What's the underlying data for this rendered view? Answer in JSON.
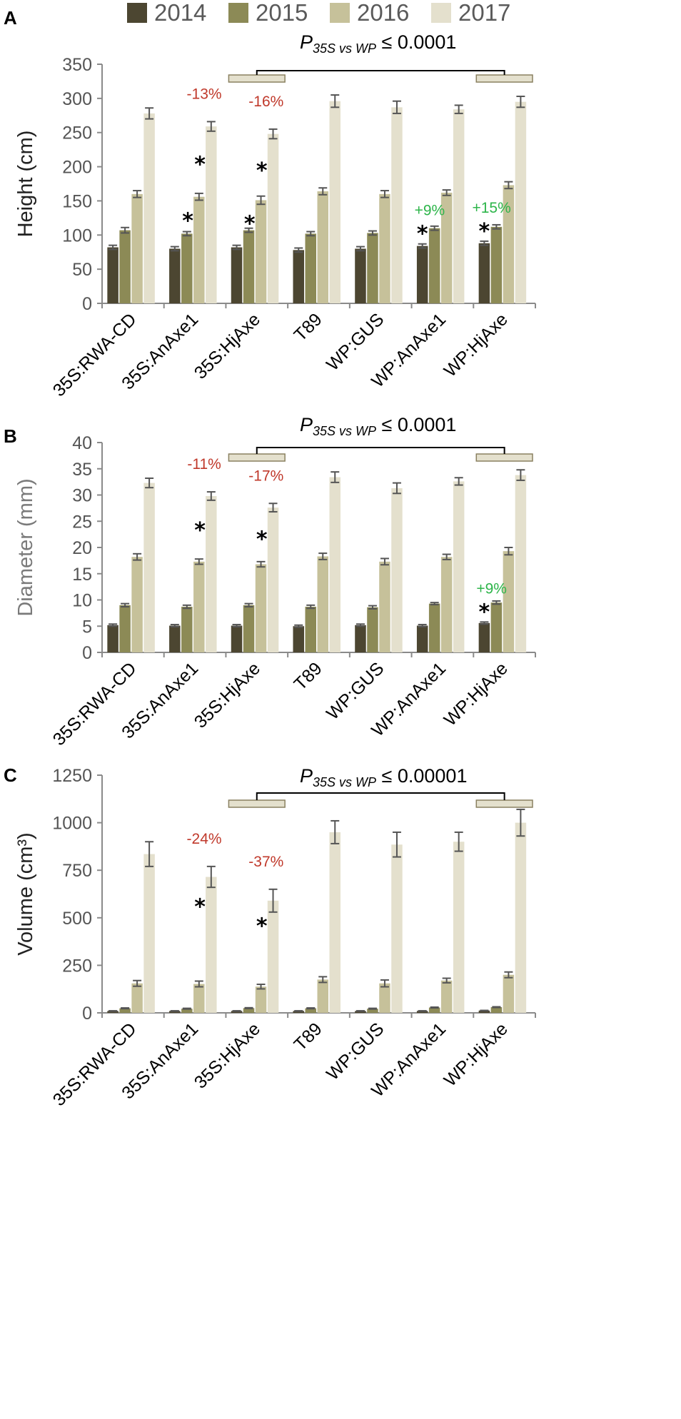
{
  "legend": {
    "entries": [
      {
        "label": "2014",
        "color": "#4c4631"
      },
      {
        "label": "2015",
        "color": "#8c8a56"
      },
      {
        "label": "2016",
        "color": "#c6c19a"
      },
      {
        "label": "2017",
        "color": "#e4e0cd"
      }
    ]
  },
  "chart_data": [
    {
      "panel": "A",
      "type": "bar",
      "ylabel": "Height (cm)",
      "xlabel": "",
      "ylim": [
        0,
        350
      ],
      "yticks": [
        0,
        50,
        100,
        150,
        200,
        250,
        300,
        350
      ],
      "categories": [
        "35S:RWA-CD",
        "35S:AnAxe1",
        "35S:HjAxe",
        "T89",
        "WP:GUS",
        "WP:AnAxe1",
        "WP:HjAxe"
      ],
      "series": [
        {
          "name": "2014",
          "values": [
            82,
            80,
            82,
            78,
            80,
            84,
            88
          ],
          "errors": [
            3,
            3,
            3,
            3,
            3,
            3,
            3
          ]
        },
        {
          "name": "2015",
          "values": [
            107,
            102,
            107,
            102,
            103,
            110,
            112
          ],
          "errors": [
            4,
            3,
            3,
            3,
            3,
            3,
            3
          ]
        },
        {
          "name": "2016",
          "values": [
            160,
            156,
            151,
            164,
            160,
            162,
            173
          ],
          "errors": [
            5,
            5,
            6,
            5,
            5,
            4,
            5
          ]
        },
        {
          "name": "2017",
          "values": [
            278,
            259,
            248,
            296,
            287,
            284,
            295
          ],
          "errors": [
            8,
            7,
            7,
            9,
            9,
            6,
            8
          ]
        }
      ],
      "stars": [
        {
          "category": "35S:AnAxe1",
          "series": "2016",
          "label": "*"
        },
        {
          "category": "35S:AnAxe1",
          "series": "2017",
          "label": "*"
        },
        {
          "category": "35S:HjAxe",
          "series": "2016",
          "label": "*"
        },
        {
          "category": "35S:HjAxe",
          "series": "2017",
          "label": "*"
        },
        {
          "category": "WP:AnAxe1",
          "series": "2014",
          "label": "*"
        },
        {
          "category": "WP:HjAxe",
          "series": "2014",
          "label": "*"
        }
      ],
      "annotations": [
        {
          "text": "-13%",
          "category": "35S:AnAxe1",
          "series": "2017",
          "color": "#c0392b"
        },
        {
          "text": "-16%",
          "category": "35S:HjAxe",
          "series": "2017",
          "color": "#c0392b"
        },
        {
          "text": "+9%",
          "category": "WP:AnAxe1",
          "series": "2014",
          "color": "#2db54a"
        },
        {
          "text": "+15%",
          "category": "WP:HjAxe",
          "series": "2014",
          "color": "#2db54a"
        }
      ],
      "comparison": {
        "left_from": 2,
        "left_to": 3,
        "right_from": 6,
        "right_to": 7,
        "pos": 336
      },
      "pvalue": {
        "p": "P",
        "sub": "35S vs WP",
        "rest": " ≤ 0.0001"
      }
    },
    {
      "panel": "B",
      "type": "bar",
      "ylabel": "Diameter (mm)",
      "xlabel": "",
      "ylim": [
        0,
        40
      ],
      "yticks": [
        0,
        5,
        10,
        15,
        20,
        25,
        30,
        35,
        40
      ],
      "categories": [
        "35S:RWA-CD",
        "35S:AnAxe1",
        "35S:HjAxe",
        "T89",
        "WP:GUS",
        "WP:AnAxe1",
        "WP:HjAxe"
      ],
      "series": [
        {
          "name": "2014",
          "values": [
            5.2,
            5.1,
            5.1,
            5.0,
            5.2,
            5.1,
            5.6
          ],
          "errors": [
            0.2,
            0.2,
            0.2,
            0.2,
            0.2,
            0.2,
            0.2
          ]
        },
        {
          "name": "2015",
          "values": [
            9.0,
            8.7,
            9.0,
            8.7,
            8.6,
            9.3,
            9.5
          ],
          "errors": [
            0.3,
            0.3,
            0.3,
            0.3,
            0.3,
            0.2,
            0.3
          ]
        },
        {
          "name": "2016",
          "values": [
            18.2,
            17.3,
            16.8,
            18.3,
            17.3,
            18.2,
            19.3
          ],
          "errors": [
            0.6,
            0.5,
            0.5,
            0.6,
            0.6,
            0.5,
            0.7
          ]
        },
        {
          "name": "2017",
          "values": [
            32.3,
            29.8,
            27.6,
            33.4,
            31.3,
            32.6,
            33.8
          ],
          "errors": [
            0.9,
            0.8,
            0.8,
            1.0,
            1.0,
            0.7,
            1.0
          ]
        }
      ],
      "stars": [
        {
          "category": "35S:AnAxe1",
          "series": "2017",
          "label": "*"
        },
        {
          "category": "35S:HjAxe",
          "series": "2017",
          "label": "*"
        },
        {
          "category": "WP:HjAxe",
          "series": "2014",
          "label": "*"
        }
      ],
      "annotations": [
        {
          "text": "-11%",
          "category": "35S:AnAxe1",
          "series": "2017",
          "color": "#c0392b"
        },
        {
          "text": "-17%",
          "category": "35S:HjAxe",
          "series": "2017",
          "color": "#c0392b"
        },
        {
          "text": "+9%",
          "category": "WP:HjAxe",
          "series": "2014",
          "color": "#2db54a"
        }
      ],
      "comparison": {
        "left_from": 2,
        "left_to": 3,
        "right_from": 6,
        "right_to": 7,
        "pos": 38.4
      },
      "pvalue": {
        "p": "P",
        "sub": "35S vs WP",
        "rest": " ≤ 0.0001"
      }
    },
    {
      "panel": "C",
      "type": "bar",
      "ylabel": "Volume (cm³)",
      "xlabel": "",
      "ylim": [
        0,
        1250
      ],
      "yticks": [
        0,
        250,
        500,
        750,
        1000,
        1250
      ],
      "categories": [
        "35S:RWA-CD",
        "35S:AnAxe1",
        "35S:HjAxe",
        "T89",
        "WP:GUS",
        "WP:AnAxe1",
        "WP:HjAxe"
      ],
      "series": [
        {
          "name": "2014",
          "values": [
            10,
            10,
            10,
            10,
            10,
            10,
            12
          ],
          "errors": [
            1,
            1,
            1,
            1,
            1,
            1,
            1
          ]
        },
        {
          "name": "2015",
          "values": [
            24,
            22,
            25,
            24,
            22,
            28,
            30
          ],
          "errors": [
            2,
            2,
            2,
            2,
            2,
            2,
            2
          ]
        },
        {
          "name": "2016",
          "values": [
            155,
            152,
            138,
            175,
            155,
            170,
            200
          ],
          "errors": [
            15,
            15,
            12,
            15,
            18,
            12,
            15
          ]
        },
        {
          "name": "2017",
          "values": [
            835,
            715,
            590,
            950,
            885,
            900,
            1000
          ],
          "errors": [
            65,
            55,
            60,
            60,
            65,
            50,
            70
          ]
        }
      ],
      "stars": [
        {
          "category": "35S:AnAxe1",
          "series": "2017",
          "label": "*"
        },
        {
          "category": "35S:HjAxe",
          "series": "2017",
          "label": "*"
        }
      ],
      "annotations": [
        {
          "text": "-24%",
          "category": "35S:AnAxe1",
          "series": "2017",
          "color": "#c0392b"
        },
        {
          "text": "-37%",
          "category": "35S:HjAxe",
          "series": "2017",
          "color": "#c0392b"
        }
      ],
      "comparison": {
        "left_from": 2,
        "left_to": 3,
        "right_from": 6,
        "right_to": 7,
        "pos": 1200
      },
      "pvalue": {
        "p": "P",
        "sub": "35S vs WP",
        "rest": " ≤ 0.00001"
      }
    }
  ]
}
